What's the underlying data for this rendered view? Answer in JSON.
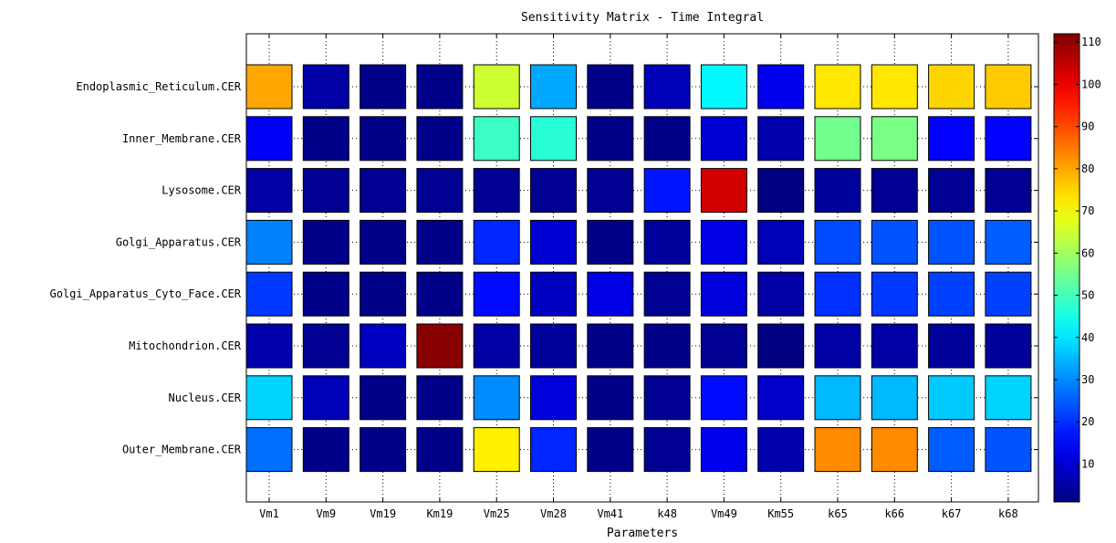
{
  "chart_data": {
    "type": "heatmap",
    "title": "Sensitivity Matrix - Time Integral",
    "xlabel": "Parameters",
    "ylabel": "",
    "x_categories": [
      "Vm1",
      "Vm9",
      "Vm19",
      "Km19",
      "Vm25",
      "Vm28",
      "Vm41",
      "k48",
      "Vm49",
      "Km55",
      "k65",
      "k66",
      "k67",
      "k68"
    ],
    "y_categories": [
      "Endoplasmic_Reticulum.CER",
      "Inner_Membrane.CER",
      "Lysosome.CER",
      "Golgi_Apparatus.CER",
      "Golgi_Apparatus_Cyto_Face.CER",
      "Mitochondrion.CER",
      "Nucleus.CER",
      "Outer_Membrane.CER"
    ],
    "values": [
      [
        80,
        5,
        2,
        2,
        65,
        33,
        2,
        7,
        42,
        13,
        73,
        73,
        75,
        76
      ],
      [
        14,
        2,
        2,
        2,
        49,
        47,
        2,
        2,
        10,
        6,
        55,
        56,
        15,
        15
      ],
      [
        5,
        3,
        3,
        3,
        3,
        3,
        3,
        17,
        103,
        1,
        4,
        3,
        3,
        3
      ],
      [
        29,
        2,
        2,
        2,
        19,
        10,
        2,
        4,
        12,
        7,
        23,
        24,
        24,
        25
      ],
      [
        21,
        2,
        2,
        2,
        16,
        8,
        12,
        3,
        11,
        5,
        20,
        21,
        22,
        22
      ],
      [
        6,
        3,
        8,
        111,
        5,
        4,
        2,
        2,
        3,
        1,
        5,
        5,
        4,
        4
      ],
      [
        38,
        7,
        2,
        2,
        30,
        11,
        2,
        3,
        16,
        9,
        35,
        35,
        37,
        38
      ],
      [
        27,
        2,
        2,
        2,
        72,
        19,
        2,
        3,
        13,
        6,
        83,
        83,
        25,
        24
      ]
    ],
    "colorbar": {
      "colormap": "jet",
      "min": 1,
      "max": 112,
      "ticks": [
        10,
        20,
        30,
        40,
        50,
        60,
        70,
        80,
        90,
        100,
        110
      ]
    },
    "grid": true,
    "legend": "none"
  }
}
